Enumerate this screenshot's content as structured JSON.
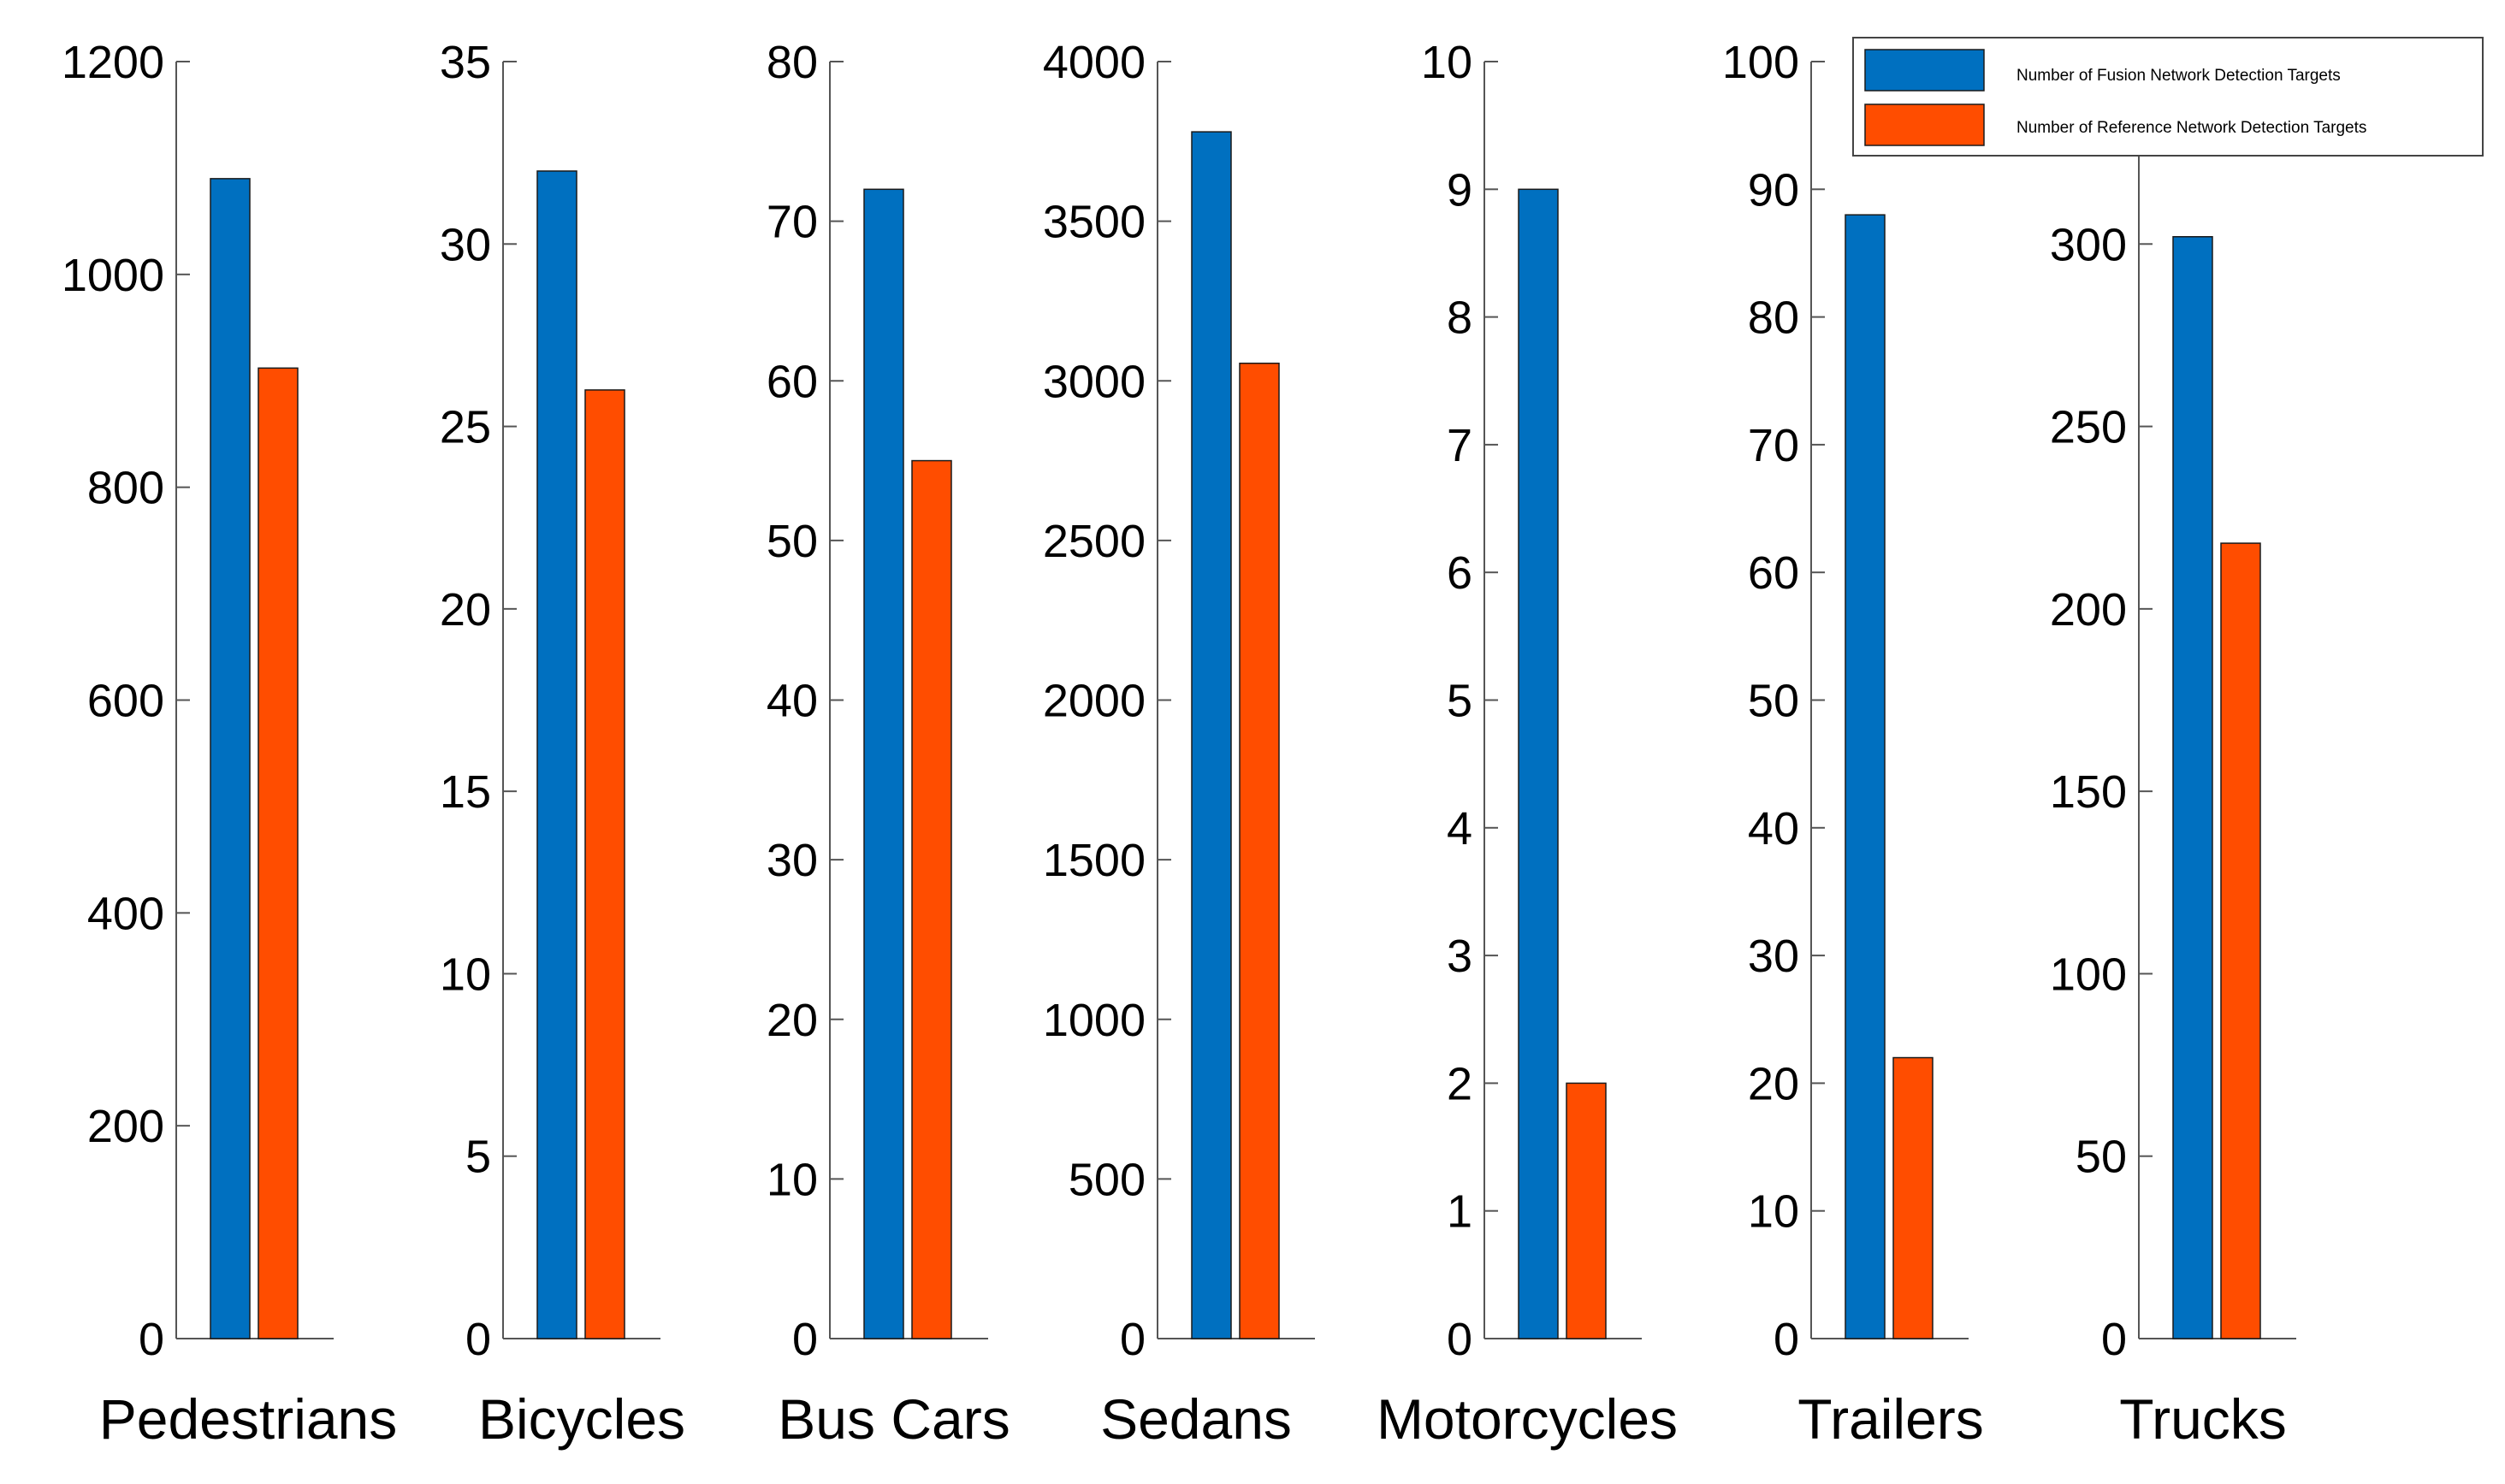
{
  "chart_data": {
    "type": "bar",
    "layout": "small-multiples",
    "title": "",
    "xlabel": "",
    "ylabel": "",
    "grid": false,
    "legend_position": "top-right",
    "colors": {
      "fusion": "#0070C0",
      "reference": "#FF4D00"
    },
    "series": [
      {
        "name": "Number of Fusion Network Detection Targets",
        "key": "fusion"
      },
      {
        "name": "Number of Reference Network Detection Targets",
        "key": "reference"
      }
    ],
    "panels": [
      {
        "category": "Pedestrians",
        "ylim": [
          0,
          1200
        ],
        "yticks": [
          0,
          200,
          400,
          600,
          800,
          1000,
          1200
        ],
        "values": {
          "fusion": 1090,
          "reference": 912
        }
      },
      {
        "category": "Bicycles",
        "ylim": [
          0,
          35
        ],
        "yticks": [
          0,
          5,
          10,
          15,
          20,
          25,
          30,
          35
        ],
        "values": {
          "fusion": 32,
          "reference": 26
        }
      },
      {
        "category": "Bus Cars",
        "ylim": [
          0,
          80
        ],
        "yticks": [
          0,
          10,
          20,
          30,
          40,
          50,
          60,
          70,
          80
        ],
        "values": {
          "fusion": 72,
          "reference": 55
        }
      },
      {
        "category": "Sedans",
        "ylim": [
          0,
          4000
        ],
        "yticks": [
          0,
          500,
          1000,
          1500,
          2000,
          2500,
          3000,
          3500,
          4000
        ],
        "values": {
          "fusion": 3780,
          "reference": 3055
        }
      },
      {
        "category": "Motorcycles",
        "ylim": [
          0,
          10
        ],
        "yticks": [
          0,
          1,
          2,
          3,
          4,
          5,
          6,
          7,
          8,
          9,
          10
        ],
        "values": {
          "fusion": 9,
          "reference": 2
        }
      },
      {
        "category": "Trailers",
        "ylim": [
          0,
          100
        ],
        "yticks": [
          0,
          10,
          20,
          30,
          40,
          50,
          60,
          70,
          80,
          90,
          100
        ],
        "values": {
          "fusion": 88,
          "reference": 22
        }
      },
      {
        "category": "Trucks",
        "ylim": [
          0,
          350
        ],
        "yticks": [
          0,
          50,
          100,
          150,
          200,
          250,
          300
        ],
        "values": {
          "fusion": 302,
          "reference": 218
        }
      }
    ]
  }
}
